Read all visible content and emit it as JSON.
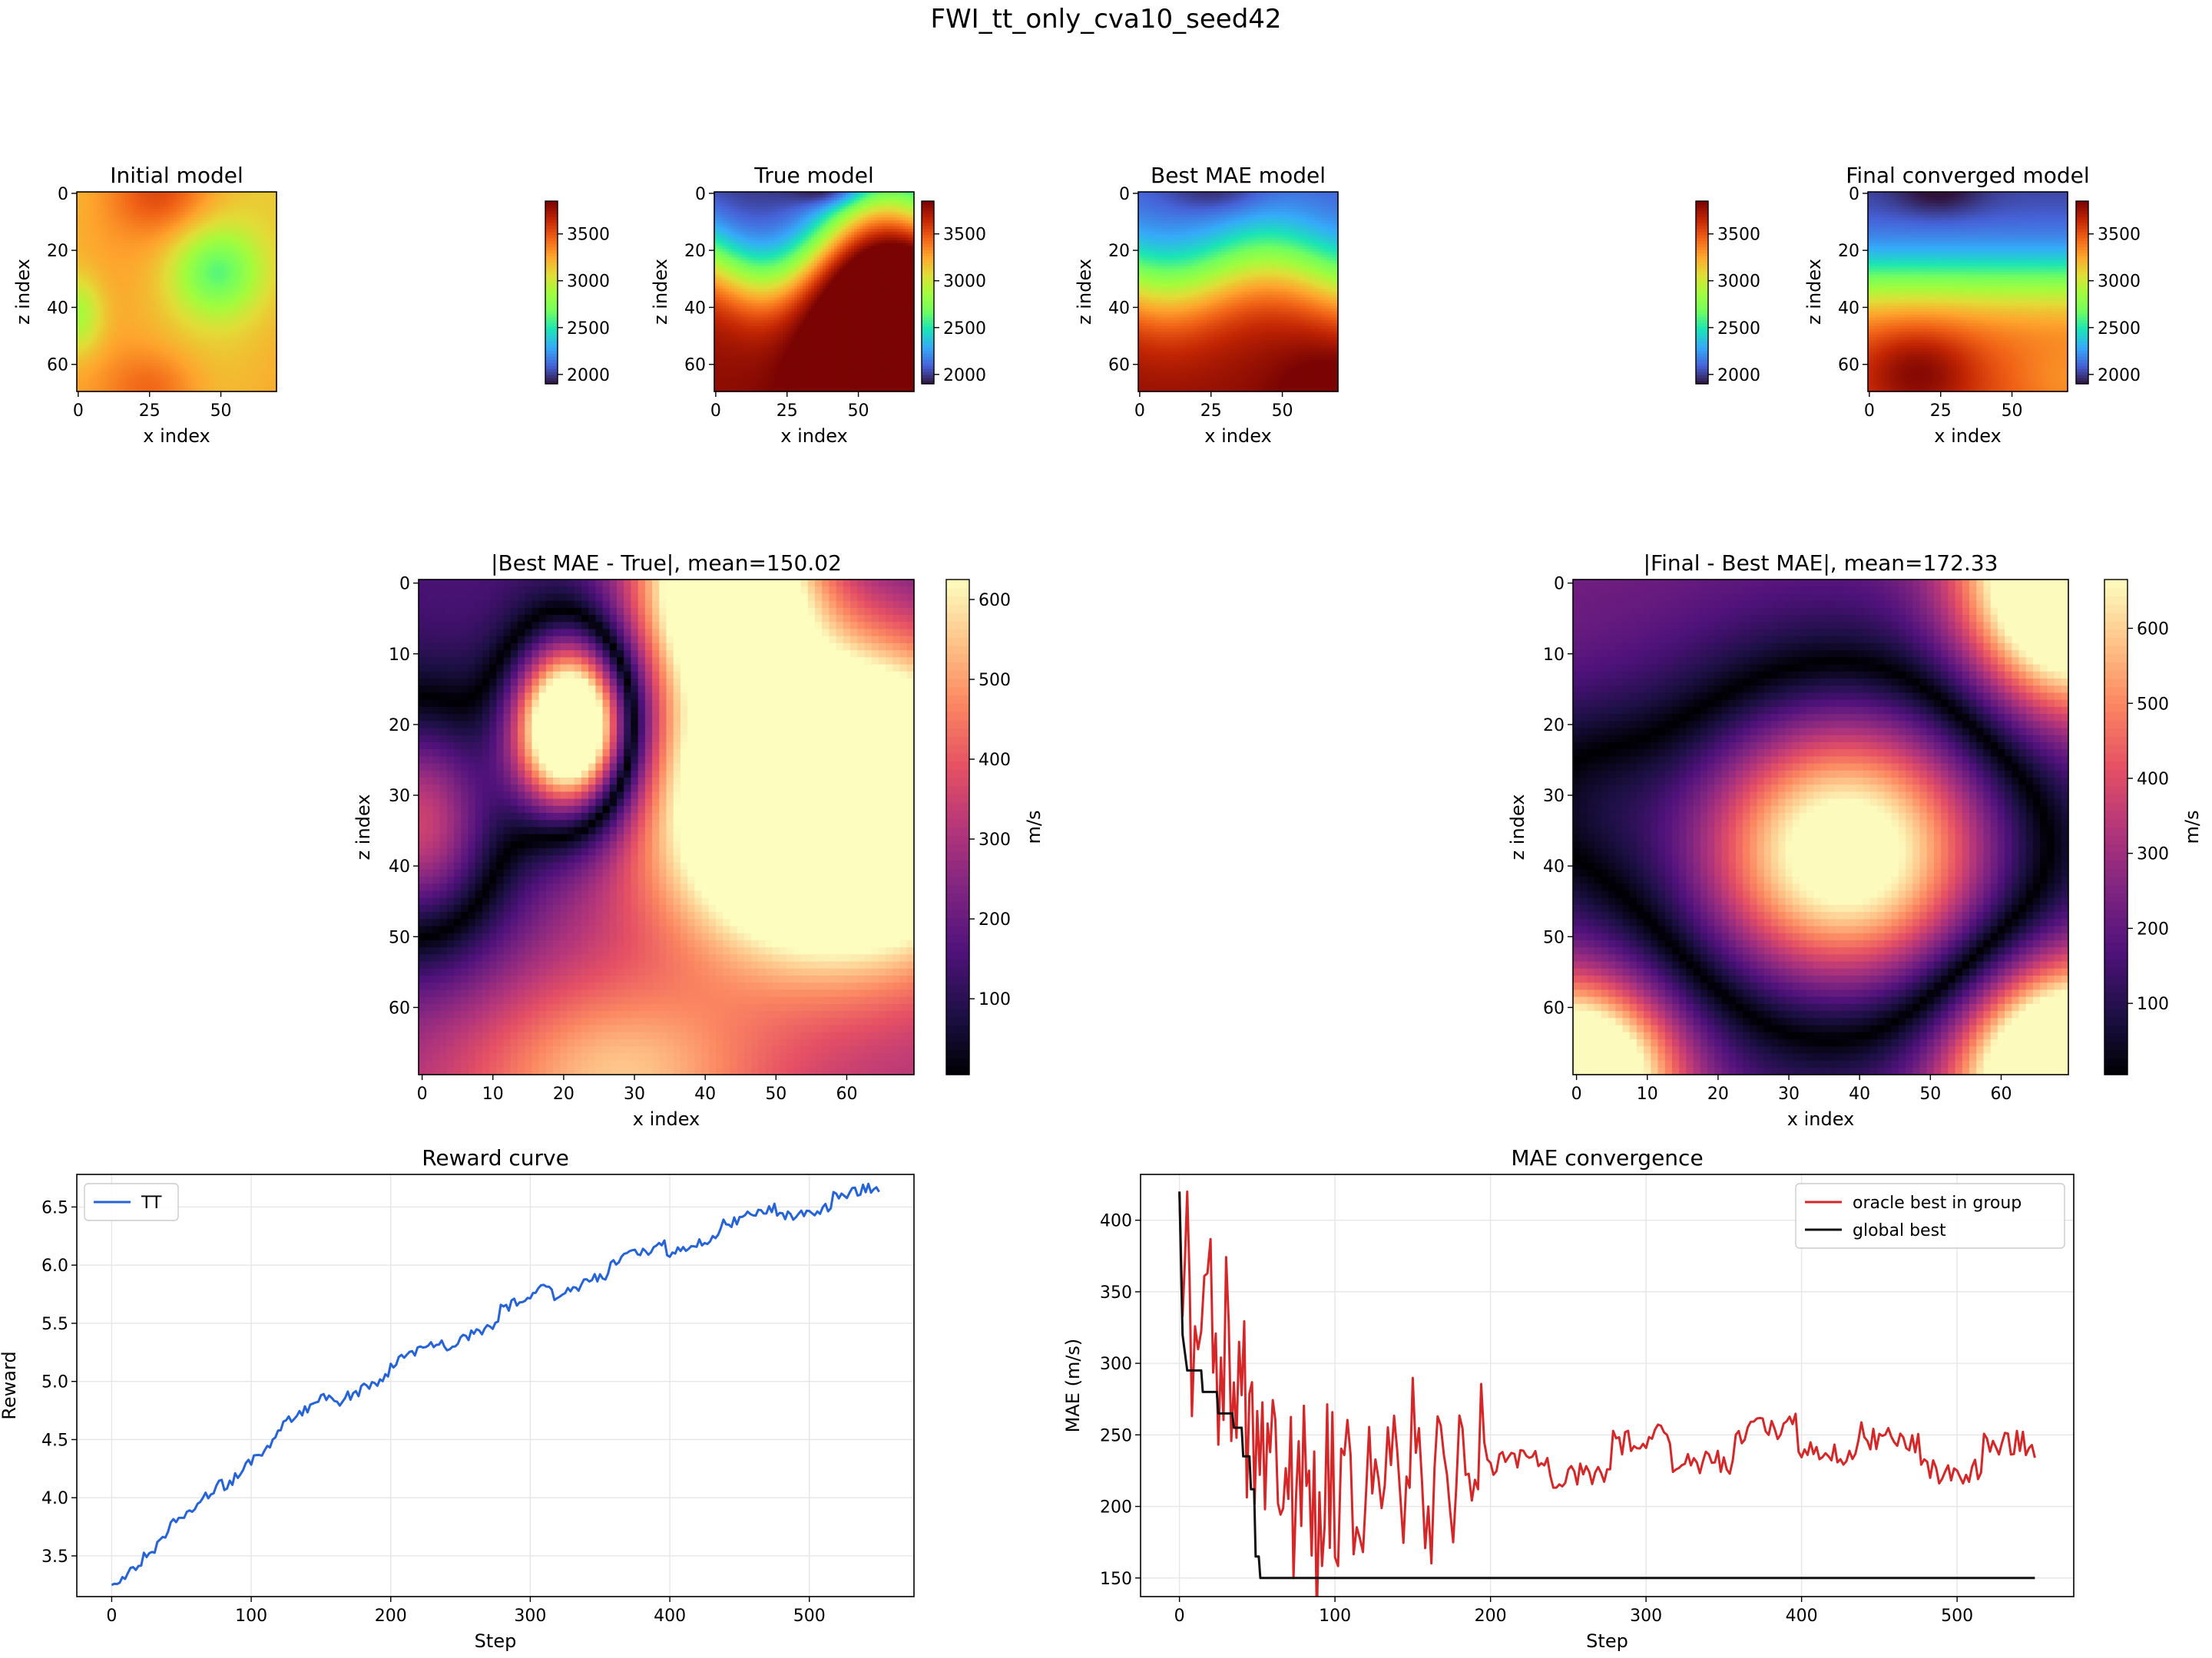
{
  "figure": {
    "suptitle": "FWI_tt_only_cva10_seed42"
  },
  "colors": {
    "tt_line": "#2563d9",
    "oracle_line": "#d62728",
    "global_line": "#111111",
    "grid": "#e6e6e6"
  },
  "chart_data": [
    {
      "type": "heatmap",
      "id": "initial",
      "title": "Initial model",
      "xlabel": "x index",
      "ylabel": "z index",
      "colormap": "turbo",
      "vmin": 1900,
      "vmax": 3850,
      "xticks": [
        "0",
        "25",
        "50"
      ],
      "yticks": [
        "0",
        "20",
        "40",
        "60"
      ],
      "colorbar_ticks": [
        "2000",
        "2500",
        "3000",
        "3500"
      ],
      "grid_shape": [
        70,
        70
      ]
    },
    {
      "type": "heatmap",
      "id": "true",
      "title": "True model",
      "xlabel": "x index",
      "ylabel": "z index",
      "colormap": "turbo",
      "vmin": 1900,
      "vmax": 3850,
      "xticks": [
        "0",
        "25",
        "50"
      ],
      "yticks": [
        "0",
        "20",
        "40",
        "60"
      ],
      "colorbar_ticks": [
        "2000",
        "2500",
        "3000",
        "3500"
      ],
      "grid_shape": [
        70,
        70
      ]
    },
    {
      "type": "heatmap",
      "id": "best",
      "title": "Best MAE model",
      "xlabel": "x index",
      "ylabel": "z index",
      "colormap": "turbo",
      "vmin": 1900,
      "vmax": 3850,
      "xticks": [
        "0",
        "25",
        "50"
      ],
      "yticks": [
        "0",
        "20",
        "40",
        "60"
      ],
      "colorbar_ticks": [
        "2000",
        "2500",
        "3000",
        "3500"
      ],
      "grid_shape": [
        70,
        70
      ]
    },
    {
      "type": "heatmap",
      "id": "final",
      "title": "Final converged model",
      "xlabel": "x index",
      "ylabel": "z index",
      "colormap": "turbo",
      "vmin": 1900,
      "vmax": 3850,
      "xticks": [
        "0",
        "25",
        "50"
      ],
      "yticks": [
        "0",
        "20",
        "40",
        "60"
      ],
      "colorbar_ticks": [
        "2000",
        "2500",
        "3000",
        "3500"
      ],
      "grid_shape": [
        70,
        70
      ]
    },
    {
      "type": "heatmap",
      "id": "diff1",
      "title": "|Best MAE - True|, mean=150.02",
      "xlabel": "x index",
      "ylabel": "z index",
      "colormap": "magma",
      "vmin": 5,
      "vmax": 625,
      "colorbar_label": "m/s",
      "xticks": [
        "0",
        "10",
        "20",
        "30",
        "40",
        "50",
        "60"
      ],
      "yticks": [
        "0",
        "10",
        "20",
        "30",
        "40",
        "50",
        "60"
      ],
      "colorbar_ticks": [
        "100",
        "200",
        "300",
        "400",
        "500",
        "600"
      ],
      "grid_shape": [
        70,
        70
      ]
    },
    {
      "type": "heatmap",
      "id": "diff2",
      "title": "|Final - Best MAE|, mean=172.33",
      "xlabel": "x index",
      "ylabel": "z index",
      "colormap": "magma",
      "vmin": 5,
      "vmax": 665,
      "colorbar_label": "m/s",
      "xticks": [
        "0",
        "10",
        "20",
        "30",
        "40",
        "50",
        "60"
      ],
      "yticks": [
        "0",
        "10",
        "20",
        "30",
        "40",
        "50",
        "60"
      ],
      "colorbar_ticks": [
        "100",
        "200",
        "300",
        "400",
        "500",
        "600"
      ],
      "grid_shape": [
        70,
        70
      ]
    },
    {
      "type": "line",
      "id": "reward",
      "title": "Reward curve",
      "xlabel": "Step",
      "ylabel": "Reward",
      "xlim": [
        -25,
        575
      ],
      "ylim": [
        3.15,
        6.78
      ],
      "xticks": [
        0,
        100,
        200,
        300,
        400,
        500
      ],
      "yticks": [
        3.5,
        4.0,
        4.5,
        5.0,
        5.5,
        6.0,
        6.5
      ],
      "grid": true,
      "legend": "top-left",
      "series": [
        {
          "name": "TT",
          "x": [
            0,
            25,
            50,
            75,
            100,
            125,
            150,
            175,
            200,
            225,
            250,
            275,
            300,
            325,
            350,
            375,
            400,
            425,
            450,
            475,
            500,
            525,
            550
          ],
          "values": [
            3.25,
            3.55,
            3.8,
            4.05,
            4.35,
            4.6,
            4.8,
            4.95,
            5.1,
            5.25,
            5.4,
            5.55,
            5.7,
            5.82,
            5.95,
            6.05,
            6.15,
            6.25,
            6.35,
            6.45,
            6.5,
            6.57,
            6.63
          ]
        }
      ]
    },
    {
      "type": "line",
      "id": "mae",
      "title": "MAE convergence",
      "xlabel": "Step",
      "ylabel": "MAE (m/s)",
      "xlim": [
        -25,
        575
      ],
      "ylim": [
        137,
        432
      ],
      "xticks": [
        0,
        100,
        200,
        300,
        400,
        500
      ],
      "yticks": [
        150,
        200,
        250,
        300,
        350,
        400
      ],
      "grid": true,
      "legend": "top-right",
      "series": [
        {
          "name": "oracle best in group",
          "x": [
            0,
            2,
            5,
            8,
            12,
            16,
            20,
            25,
            30,
            35,
            40,
            45,
            50,
            55,
            60,
            65,
            70,
            75,
            80,
            85,
            90,
            95,
            100,
            110,
            120,
            130,
            140,
            150,
            160,
            170,
            180,
            190,
            200,
            225,
            250,
            275,
            300,
            325,
            350,
            375,
            400,
            425,
            450,
            475,
            500,
            525,
            550
          ],
          "values": [
            420,
            330,
            395,
            300,
            355,
            310,
            345,
            280,
            320,
            255,
            300,
            235,
            250,
            205,
            265,
            190,
            240,
            175,
            230,
            200,
            165,
            230,
            205,
            225,
            195,
            230,
            215,
            240,
            205,
            235,
            210,
            240,
            220,
            225,
            230,
            235,
            238,
            242,
            240,
            245,
            250,
            245,
            238,
            235,
            232,
            236,
            234
          ]
        },
        {
          "name": "global best",
          "x": [
            0,
            2,
            5,
            14,
            15,
            24,
            25,
            34,
            35,
            40,
            41,
            45,
            46,
            48,
            49,
            51,
            52,
            550
          ],
          "values": [
            420,
            320,
            295,
            295,
            280,
            280,
            265,
            265,
            255,
            255,
            235,
            235,
            212,
            212,
            165,
            165,
            150,
            150
          ]
        }
      ]
    }
  ]
}
